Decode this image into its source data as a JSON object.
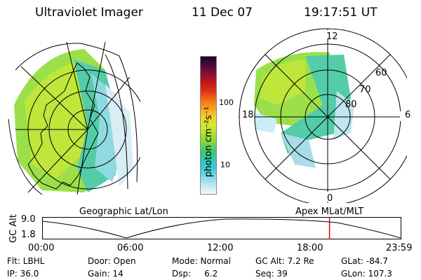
{
  "header": {
    "instrument": "Ultraviolet Imager",
    "date": "11 Dec 07",
    "time": "19:17:51 UT"
  },
  "colorbar": {
    "unit_label": "photon cm⁻²s⁻¹",
    "ticks": [
      "100",
      "10"
    ],
    "colors_top_to_bottom": [
      "#1a0033",
      "#4d0a3a",
      "#8a1030",
      "#c01818",
      "#e03018",
      "#f07018",
      "#f8a020",
      "#f0d030",
      "#d8e830",
      "#b0e030",
      "#80d840",
      "#40c870",
      "#30c8b0",
      "#40c8d8",
      "#80d8e8",
      "#c0e8f0",
      "#f0f8fc"
    ]
  },
  "left_panel": {
    "caption": "Geographic Lat/Lon"
  },
  "right_panel": {
    "caption": "Apex MLat/MLT",
    "mlt_labels": {
      "top": "12",
      "left": "18",
      "right": "6",
      "bottom": "0"
    },
    "lat_labels": [
      "60",
      "70",
      "80"
    ]
  },
  "altitude_plot": {
    "ylabel": "GC Alt",
    "yticks": [
      "9.0",
      "1.8"
    ],
    "xticks": [
      "00:00",
      "06:00",
      "12:00",
      "18:00",
      "23:59"
    ],
    "current_time_fraction": 0.8,
    "marker_color": "#d00000"
  },
  "footer": {
    "row1": [
      "Flt: LBHL",
      "Door: Open",
      "Mode: Normal",
      "GC Alt: 7.2 Re",
      "GLat: -84.7"
    ],
    "row2": [
      "IP: 36.0",
      "Gain: 14",
      "Dsp:     6.2",
      "Seq: 39",
      "GLon: 107.3"
    ]
  }
}
